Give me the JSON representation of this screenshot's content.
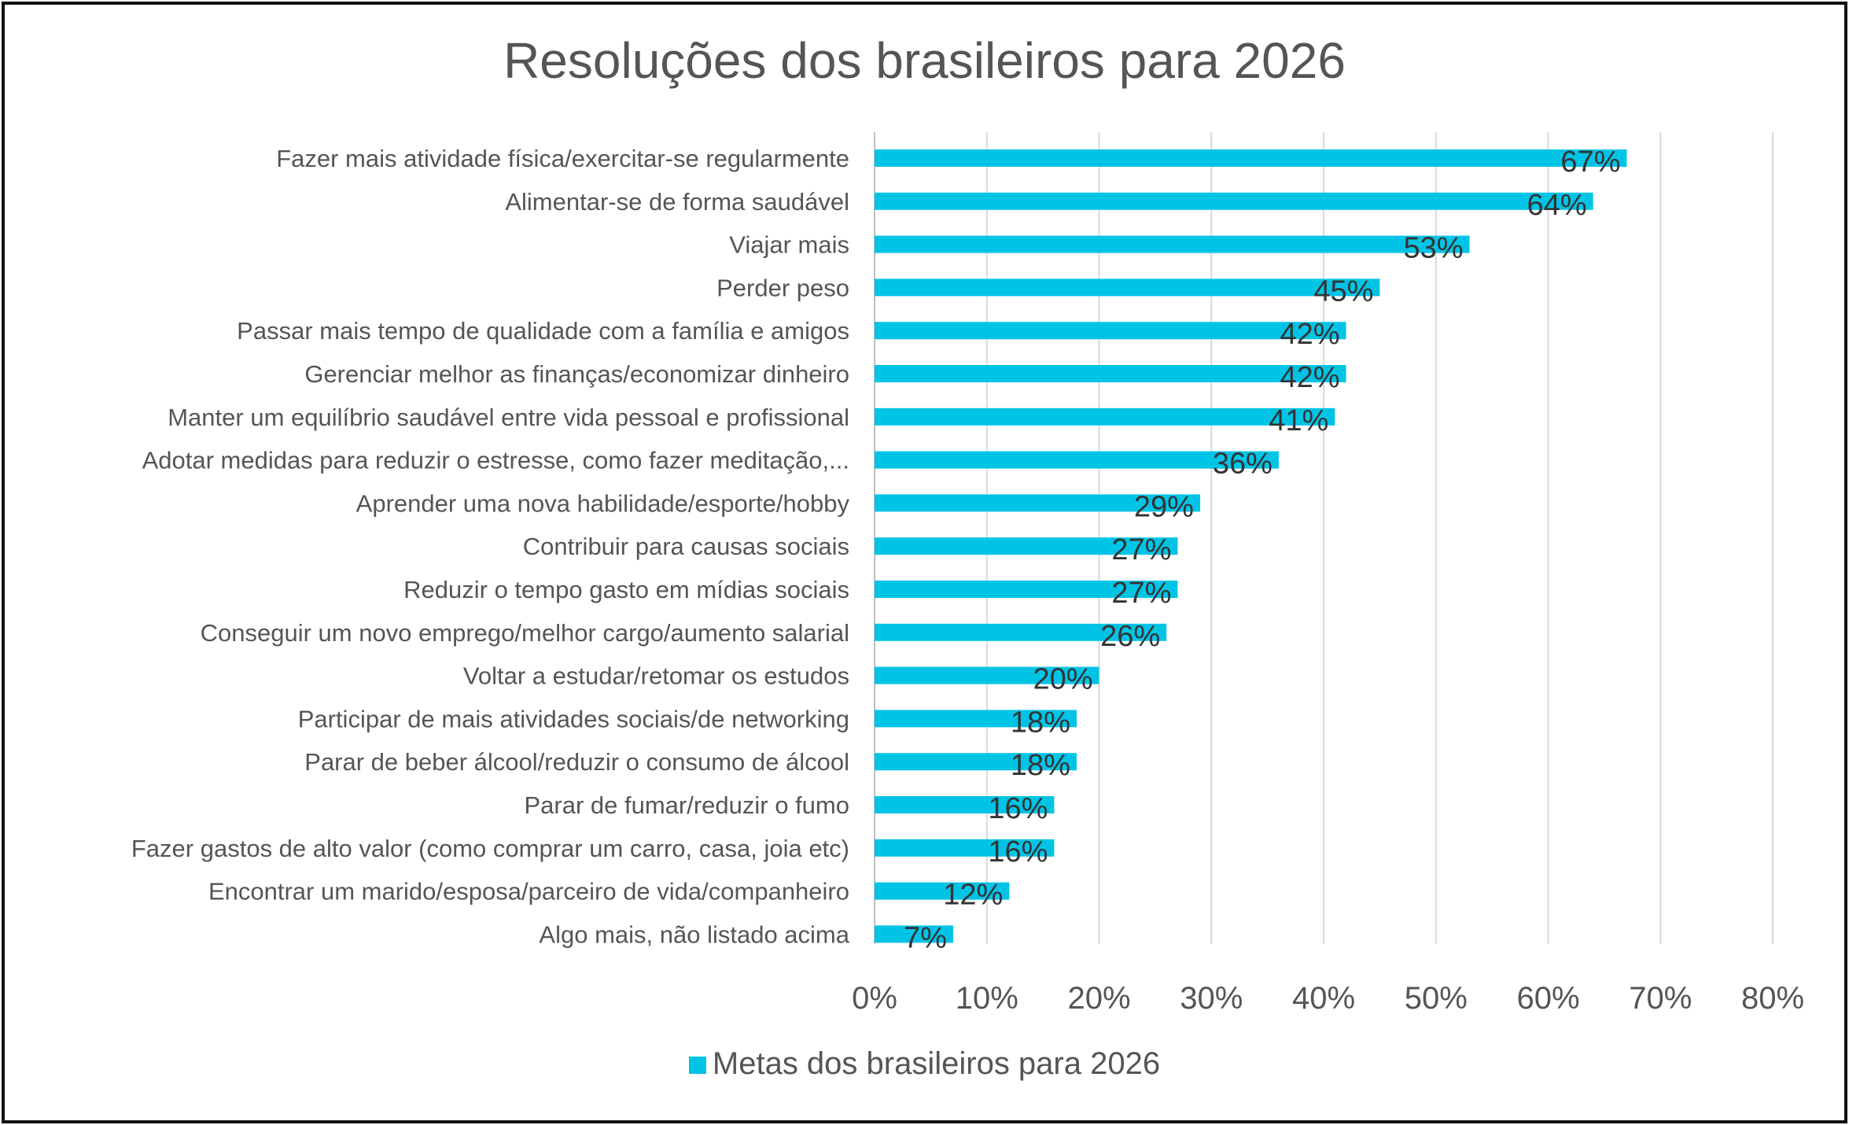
{
  "chart_data": {
    "type": "bar",
    "orientation": "horizontal",
    "title": "Resoluções dos brasileiros para 2026",
    "categories": [
      "Fazer mais atividade física/exercitar-se regularmente",
      "Alimentar-se de forma saudável",
      "Viajar mais",
      "Perder peso",
      "Passar mais tempo de qualidade com a família e amigos",
      "Gerenciar melhor as finanças/economizar dinheiro",
      "Manter um equilíbrio saudável entre vida pessoal e profissional",
      "Adotar medidas para reduzir o estresse, como fazer meditação,...",
      "Aprender uma nova habilidade/esporte/hobby",
      "Contribuir para causas sociais",
      "Reduzir o tempo gasto em mídias sociais",
      "Conseguir um novo emprego/melhor cargo/aumento salarial",
      "Voltar a estudar/retomar os estudos",
      "Participar de mais atividades sociais/de networking",
      "Parar de beber álcool/reduzir o consumo de álcool",
      "Parar de fumar/reduzir o fumo",
      "Fazer gastos de alto valor (como comprar um carro, casa, joia etc)",
      "Encontrar um marido/esposa/parceiro de vida/companheiro",
      "Algo mais, não listado acima"
    ],
    "series": [
      {
        "name": "Metas dos brasileiros para 2026",
        "values": [
          67,
          64,
          53,
          45,
          42,
          42,
          41,
          36,
          29,
          27,
          27,
          26,
          20,
          18,
          18,
          16,
          16,
          12,
          7
        ],
        "data_labels": [
          "67%",
          "64%",
          "53%",
          "45%",
          "42%",
          "42%",
          "41%",
          "36%",
          "29%",
          "27%",
          "27%",
          "26%",
          "20%",
          "18%",
          "18%",
          "16%",
          "16%",
          "12%",
          "7%"
        ]
      }
    ],
    "xlim": [
      0,
      80
    ],
    "x_ticks": [
      "0%",
      "10%",
      "20%",
      "30%",
      "40%",
      "50%",
      "60%",
      "70%",
      "80%"
    ],
    "xlabel": "",
    "ylabel": "",
    "grid": "vertical",
    "legend": "bottom",
    "colors": {
      "bar": "#00C4E6",
      "text": "#555555",
      "grid": "#D9D9D9",
      "label": "#333333"
    }
  }
}
